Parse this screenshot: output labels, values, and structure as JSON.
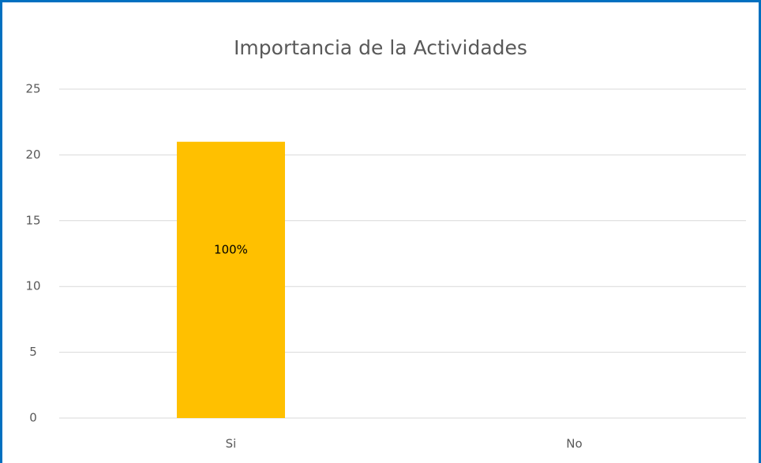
{
  "chart_data": {
    "type": "bar",
    "title": "Importancia de la Actividades",
    "categories": [
      "Si",
      "No"
    ],
    "values": [
      21,
      0
    ],
    "color": "#ffc000",
    "annotation": "100%",
    "ylim": [
      0,
      25
    ],
    "yticks": [
      0,
      5,
      10,
      15,
      20,
      25
    ],
    "grid": true
  }
}
